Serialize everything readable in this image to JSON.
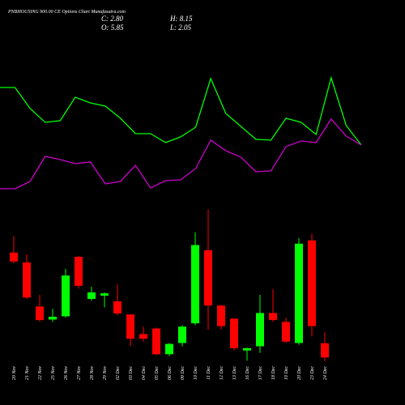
{
  "chart_data": {
    "type": "candlestick",
    "title": "PNBHOUSING 900.00 CE Options Chart Munafasutra.com",
    "stats": [
      "C: 2.80",
      "H: 8.15",
      "O: 5.85",
      "L: 2.05"
    ],
    "categories": [
      "20 Nov",
      "21 Nov",
      "22 Nov",
      "25 Nov",
      "26 Nov",
      "27 Nov",
      "28 Nov",
      "29 Nov",
      "02 Dec",
      "03 Dec",
      "04 Dec",
      "05 Dec",
      "06 Dec",
      "09 Dec",
      "10 Dec",
      "11 Dec",
      "12 Dec",
      "13 Dec",
      "16 Dec",
      "17 Dec",
      "18 Dec",
      "19 Dec",
      "20 Dec",
      "23 Dec",
      "24 Dec"
    ],
    "open": [
      25.2,
      23.1,
      13.7,
      10.9,
      11.6,
      24.3,
      15.3,
      16.0,
      14.8,
      12.0,
      7.8,
      9.0,
      3.5,
      5.9,
      10.1,
      25.7,
      13.9,
      11.1,
      4.3,
      5.2,
      12.3,
      10.4,
      5.9,
      27.8,
      5.85
    ],
    "high": [
      28.7,
      24.8,
      16.2,
      13.2,
      21.7,
      24.5,
      17.9,
      16.7,
      18.4,
      12.0,
      9.4,
      9.2,
      5.9,
      9.7,
      29.5,
      34.4,
      13.9,
      11.1,
      4.9,
      16.2,
      17.4,
      11.3,
      28.3,
      29.2,
      8.15
    ],
    "low": [
      22.9,
      15.3,
      10.4,
      10.4,
      11.3,
      17.5,
      14.9,
      13.5,
      11.8,
      5.2,
      6.2,
      3.3,
      3.1,
      5.2,
      9.7,
      8.7,
      8.8,
      4.3,
      2.1,
      3.8,
      10.4,
      5.9,
      5.5,
      7.3,
      2.05
    ],
    "close": [
      23.3,
      15.6,
      10.8,
      11.5,
      20.3,
      18.1,
      16.7,
      16.5,
      12.2,
      6.8,
      6.8,
      3.5,
      5.7,
      9.4,
      26.8,
      13.9,
      9.5,
      4.8,
      4.8,
      12.3,
      10.8,
      6.2,
      27.1,
      9.5,
      2.8
    ],
    "up_color": "#00ff00",
    "down_color": "#ff0000",
    "ylim": [
      2,
      34.5
    ],
    "lines": {
      "ylim": [
        0,
        100
      ],
      "series": [
        {
          "color": "#00ff00",
          "values": [
            76,
            76,
            63,
            54.5,
            55.5,
            70,
            66.5,
            64.5,
            57,
            47.5,
            47.5,
            42,
            45.5,
            51.5,
            81.5,
            60,
            52,
            44,
            43.5,
            57,
            54.5,
            47,
            82,
            52.5,
            40.5
          ]
        },
        {
          "color": "#cc00cc",
          "values": [
            13.5,
            13.5,
            18,
            33.5,
            31.5,
            29,
            30,
            16.5,
            18,
            28,
            14,
            18.5,
            19,
            26,
            43.5,
            37,
            33,
            24,
            24.5,
            39.5,
            43,
            42,
            56.5,
            46,
            40.5
          ]
        }
      ]
    }
  }
}
